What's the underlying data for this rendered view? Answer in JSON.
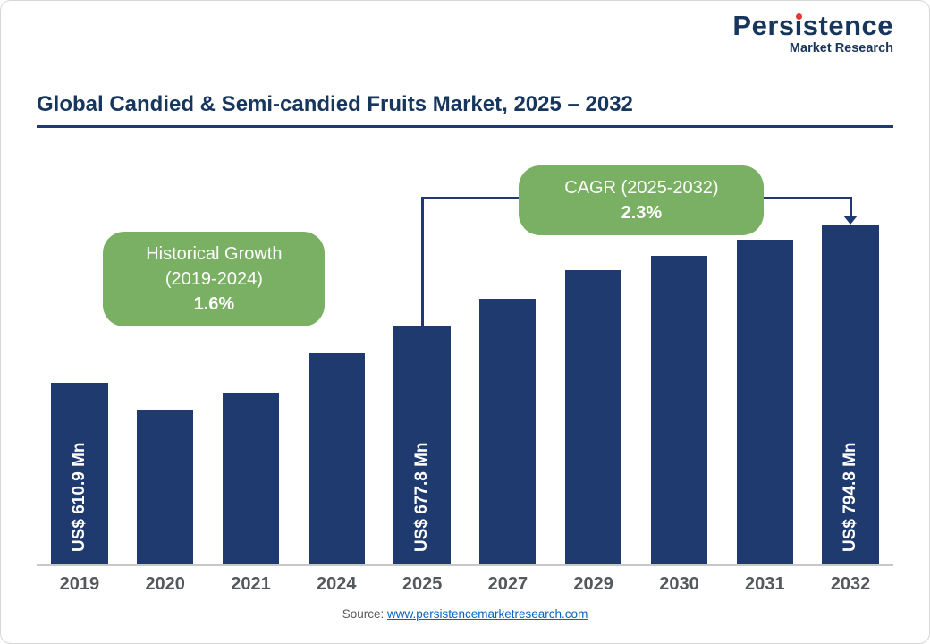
{
  "logo": {
    "name_pre": "Pers",
    "name_i": "ı",
    "name_post": "stence",
    "subtitle": "Market Research"
  },
  "title": "Global Candied & Semi-candied Fruits Market, 2025 – 2032",
  "callouts": {
    "historical": {
      "line1": "Historical Growth",
      "line2": "(2019-2024)",
      "value": "1.6%"
    },
    "cagr": {
      "line1": "CAGR (2025-2032)",
      "value": "2.3%"
    }
  },
  "source": {
    "label": "Source:",
    "url": "www.persistencemarketresearch.com"
  },
  "colors": {
    "bar": "#1e3a6e",
    "accent_green": "#7ab063",
    "navy_text": "#17365d",
    "link_blue": "#0563c1",
    "logo_red_dot": "#e03c31"
  },
  "chart_data": {
    "type": "bar",
    "title": "Global Candied & Semi-candied Fruits Market, 2025 – 2032",
    "categories": [
      "2019",
      "2020",
      "2021",
      "2024",
      "2025",
      "2027",
      "2029",
      "2030",
      "2031",
      "2032"
    ],
    "values": [
      610.9,
      580,
      600,
      645,
      677.8,
      709,
      742,
      759,
      777,
      794.8
    ],
    "value_unit": "US$ Mn",
    "labeled_points": {
      "2019": 610.9,
      "2025": 677.8,
      "2032": 794.8
    },
    "bar_value_labels": [
      "US$ 610.9 Mn",
      "",
      "",
      "",
      "US$ 677.8 Mn",
      "",
      "",
      "",
      "",
      "US$ 794.8 Mn"
    ],
    "annotations": [
      {
        "type": "callout",
        "text": "Historical Growth (2019-2024) 1.6%",
        "refers_to": "2019-2024"
      },
      {
        "type": "callout-with-bracket",
        "text": "CAGR (2025-2032) 2.3%",
        "bracket_from": "2025",
        "bracket_to": "2032"
      }
    ],
    "xlabel": "",
    "ylabel": "",
    "visual_value_range": [
      400,
      794.8
    ],
    "grid": false,
    "legend": false,
    "bar_color": "#1e3a6e"
  }
}
